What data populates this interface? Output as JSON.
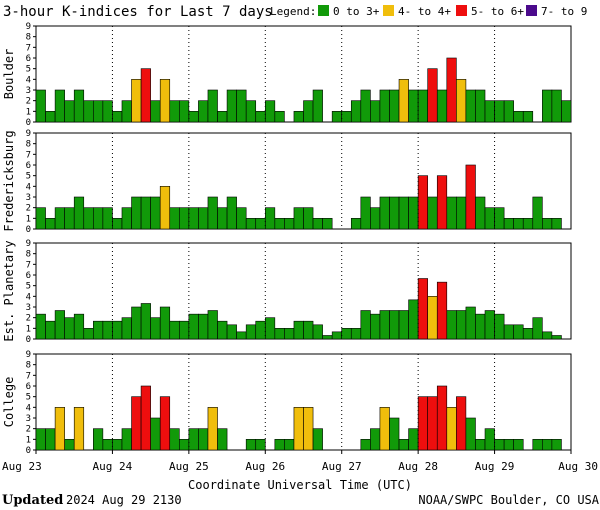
{
  "title": "3-hour K-indices for Last 7 days",
  "legend": {
    "label": "Legend:",
    "items": [
      {
        "label": "0 to 3+",
        "color": "#119a09"
      },
      {
        "label": "4- to 4+",
        "color": "#f0be0c"
      },
      {
        "label": "5- to 6+",
        "color": "#ee0e0e"
      },
      {
        "label": "7- to 9",
        "color": "#4b0a8c"
      }
    ]
  },
  "xlabel": "Coordinate Universal Time (UTC)",
  "footer": {
    "updated_label": "Updated",
    "updated_value": "2024 Aug 29 2130",
    "credit": "NOAA/SWPC Boulder, CO USA"
  },
  "chart_data": {
    "type": "bar",
    "title": "3-hour K-indices for Last 7 days",
    "xlabel": "Coordinate Universal Time (UTC)",
    "x_ticks": [
      "Aug 23",
      "Aug 24",
      "Aug 25",
      "Aug 26",
      "Aug 27",
      "Aug 28",
      "Aug 29",
      "Aug 30"
    ],
    "y_ticks": [
      "0",
      "1",
      "2",
      "3",
      "4",
      "5",
      "6",
      "7",
      "8",
      "9"
    ],
    "ylim": [
      0,
      9
    ],
    "intervals_per_day": 8,
    "grid": true,
    "panels": [
      {
        "name": "Boulder",
        "values": [
          3,
          1,
          3,
          2,
          3,
          2,
          2,
          2,
          1,
          2,
          4,
          5,
          2,
          4,
          2,
          2,
          1,
          2,
          3,
          1,
          3,
          3,
          2,
          1,
          2,
          1,
          0,
          1,
          2,
          3,
          0,
          1,
          1,
          2,
          3,
          2,
          3,
          3,
          4,
          3,
          3,
          5,
          3,
          6,
          4,
          3,
          3,
          2,
          2,
          2,
          1,
          1,
          0,
          3,
          3,
          2,
          0
        ]
      },
      {
        "name": "Fredericksburg",
        "values": [
          2,
          1,
          2,
          2,
          3,
          2,
          2,
          2,
          1,
          2,
          3,
          3,
          3,
          4,
          2,
          2,
          2,
          2,
          3,
          2,
          3,
          2,
          1,
          1,
          2,
          1,
          1,
          2,
          2,
          1,
          1,
          0,
          0,
          1,
          3,
          2,
          3,
          3,
          3,
          3,
          5,
          3,
          5,
          3,
          3,
          6,
          3,
          2,
          2,
          1,
          1,
          1,
          3,
          1,
          1,
          0
        ]
      },
      {
        "name": "Est. Planetary",
        "values": [
          2.33,
          1.67,
          2.67,
          2,
          2.33,
          1,
          1.67,
          1.67,
          1.67,
          2,
          3,
          3.33,
          2,
          3,
          1.67,
          1.67,
          2.33,
          2.33,
          2.67,
          1.67,
          1.33,
          0.67,
          1.33,
          1.67,
          2,
          1,
          1,
          1.67,
          1.67,
          1.33,
          0.33,
          0.67,
          1,
          1,
          2.67,
          2.33,
          2.67,
          2.67,
          2.67,
          3.67,
          5.67,
          4,
          5.33,
          2.67,
          2.67,
          3,
          2.33,
          2.67,
          2.33,
          1.33,
          1.33,
          1,
          2,
          0.67,
          0.33
        ]
      },
      {
        "name": "College",
        "values": [
          2,
          2,
          4,
          1,
          4,
          0,
          2,
          1,
          1,
          2,
          5,
          6,
          3,
          5,
          2,
          1,
          2,
          2,
          4,
          2,
          0,
          0,
          1,
          1,
          0,
          1,
          1,
          4,
          4,
          2,
          0,
          0,
          0,
          0,
          1,
          2,
          4,
          3,
          1,
          2,
          5,
          5,
          6,
          4,
          5,
          3,
          1,
          2,
          1,
          1,
          1,
          0,
          1,
          1,
          1,
          0
        ]
      }
    ]
  }
}
